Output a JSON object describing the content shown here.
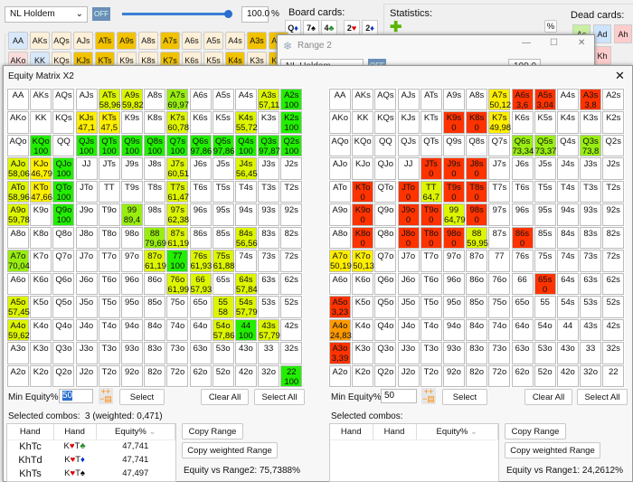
{
  "main_window": {
    "game": "NL Holdem",
    "off": "OFF",
    "slider_value": "100.0",
    "pct": "%",
    "board_label": "Board cards:",
    "board": [
      {
        "r": "Q",
        "s": "♦",
        "c": "#0033cc"
      },
      {
        "r": "7",
        "s": "♠",
        "c": "#000"
      },
      {
        "r": "4",
        "s": "♣",
        "c": "#228822"
      },
      {
        "r": "2",
        "s": "♥",
        "c": "#dd0000"
      },
      {
        "r": "2",
        "s": "♦",
        "c": "#0033cc"
      }
    ],
    "stats_label": "Statistics:",
    "stats_pct": "%",
    "dead_label": "Dead cards:",
    "dead": [
      {
        "t": "Ac",
        "bg": "#c8f0a0"
      },
      {
        "t": "Ad",
        "bg": "#cce4ff"
      },
      {
        "t": "Ah",
        "bg": "#ffcccc"
      },
      {
        "t": "Kd",
        "bg": "#cce4ff"
      },
      {
        "t": "Kh",
        "bg": "#ffcccc"
      }
    ],
    "range_row1": [
      "AA",
      "AKs",
      "AQs",
      "AJs",
      "ATs",
      "A9s",
      "A8s",
      "A7s",
      "A6s",
      "A5s",
      "A4s",
      "A3s",
      "A2s"
    ],
    "range_row2": [
      "AKo",
      "KK",
      "KQs",
      "KJs",
      "KTs",
      "K9s",
      "K8s",
      "K7s",
      "K6s",
      "K5s",
      "K4s",
      "K3s",
      "K2s"
    ],
    "range_selected": [
      "ATs",
      "A9s",
      "A7s",
      "A3s",
      "A2s",
      "KJs",
      "KTs",
      "K7s",
      "K4s",
      "K2s"
    ]
  },
  "range2_window": {
    "title": "Range 2",
    "game": "NL Holdem",
    "off": "OFF",
    "slider_value": "100.0",
    "pct": "%"
  },
  "matrix": {
    "title": "Equity Matrix X2",
    "ranks": "AKQJT98765432",
    "left": {
      "equities": {
        "ATs": "58,96",
        "A9s": "59,82",
        "A7s": "69,97",
        "A3s": "57,11",
        "A2s": "100",
        "KJs": "47,1",
        "KTs": "47,5",
        "K7s": "60,78",
        "K4s": "55,72",
        "K2s": "100",
        "KQo": "100",
        "QJs": "100",
        "QTs": "100",
        "Q9s": "100",
        "Q8s": "100",
        "Q7s": "100",
        "Q6s": "97,86",
        "Q5s": "97,86",
        "Q4s": "100",
        "Q3s": "97,87",
        "Q2s": "100",
        "AJo": "58,06",
        "KJo": "46,79",
        "QJo": "100",
        "J7s": "60,51",
        "J4s": "56,45",
        "ATo": "58,96",
        "KTo": "47,66",
        "QTo": "100",
        "T7s": "61,47",
        "A9o": "59,78",
        "Q9o": "100",
        "99": "89,4",
        "97s": "62,38",
        "88": "79,69",
        "87s": "61,19",
        "84s": "56,56",
        "A7o": "70,04",
        "87o": "61,19",
        "77": "100",
        "76s": "61,93",
        "75s": "61,88",
        "76o": "61,99",
        "66": "57,93",
        "64s": "57,84",
        "A5o": "57,45",
        "55": "58",
        "54s": "57,79",
        "A4o": "59,62",
        "54o": "57,86",
        "44": "100",
        "43s": "57,79",
        "22": "100"
      },
      "min_equity_label": "Min Equity%",
      "min_equity": "50",
      "select": "Select",
      "clear_all": "Clear All",
      "select_all": "Select All",
      "selected_label": "Selected combos:",
      "selected_value": "3 (weighted: 0,471)",
      "columns": [
        "Hand",
        "Hand",
        "Equity%"
      ],
      "rows": [
        {
          "hand": "KhTc",
          "r1": "K",
          "s1": "♥",
          "c1": "#dd0000",
          "r2": "T",
          "s2": "♣",
          "c2": "#228822",
          "eq": "47,741"
        },
        {
          "hand": "KhTd",
          "r1": "K",
          "s1": "♥",
          "c1": "#dd0000",
          "r2": "T",
          "s2": "♦",
          "c2": "#0033cc",
          "eq": "47,741"
        },
        {
          "hand": "KhTs",
          "r1": "K",
          "s1": "♥",
          "c1": "#dd0000",
          "r2": "T",
          "s2": "♠",
          "c2": "#000",
          "eq": "47,497"
        }
      ],
      "copy_range": "Copy Range",
      "copy_weighted": "Copy weighted Range",
      "equity_vs": "Equity vs Range2: 75,7388%"
    },
    "right": {
      "equities": {
        "A7s": "50,12",
        "A6s": "3,6",
        "A5s": "3,04",
        "A3s": "3,8",
        "K9s": "0",
        "K8s": "0",
        "K7s": "49,98",
        "Q6s": "73,34",
        "Q5s": "73,37",
        "Q3s": "73,8",
        "JTs": "0",
        "J9s": "0",
        "J8s": "0",
        "KTo": "0",
        "JTo": "0",
        "TT": "64,7",
        "T9s": "0",
        "T8s": "0",
        "K9o": "0",
        "J9o": "0",
        "T9o": "0",
        "99": "64,79",
        "98s": "0",
        "K8o": "0",
        "J8o": "0",
        "T8o": "0",
        "98o": "0",
        "88": "59,95",
        "86s": "0",
        "A7o": "50,19",
        "K7o": "50,13",
        "65s": "0",
        "A5o": "3,23",
        "A4o": "24,83",
        "A3o": "3,39"
      },
      "min_equity_label": "Min Equity%",
      "min_equity": "50",
      "select": "Select",
      "clear_all": "Clear All",
      "select_all": "Select All",
      "selected_label": "Selected combos:",
      "columns": [
        "Hand",
        "Hand",
        "Equity%"
      ],
      "copy_range": "Copy Range",
      "copy_weighted": "Copy weighted Range",
      "equity_vs": "Equity vs Range1: 24,2612%"
    }
  },
  "colors": {
    "green": "#22ee00",
    "lime": "#99ee11",
    "yellowgreen": "#ddf500",
    "yellow": "#ffee00",
    "orange": "#ff9900",
    "red": "#ff3300",
    "cell_selected": "#f2c200",
    "cell_default": "#fdf0d8"
  }
}
